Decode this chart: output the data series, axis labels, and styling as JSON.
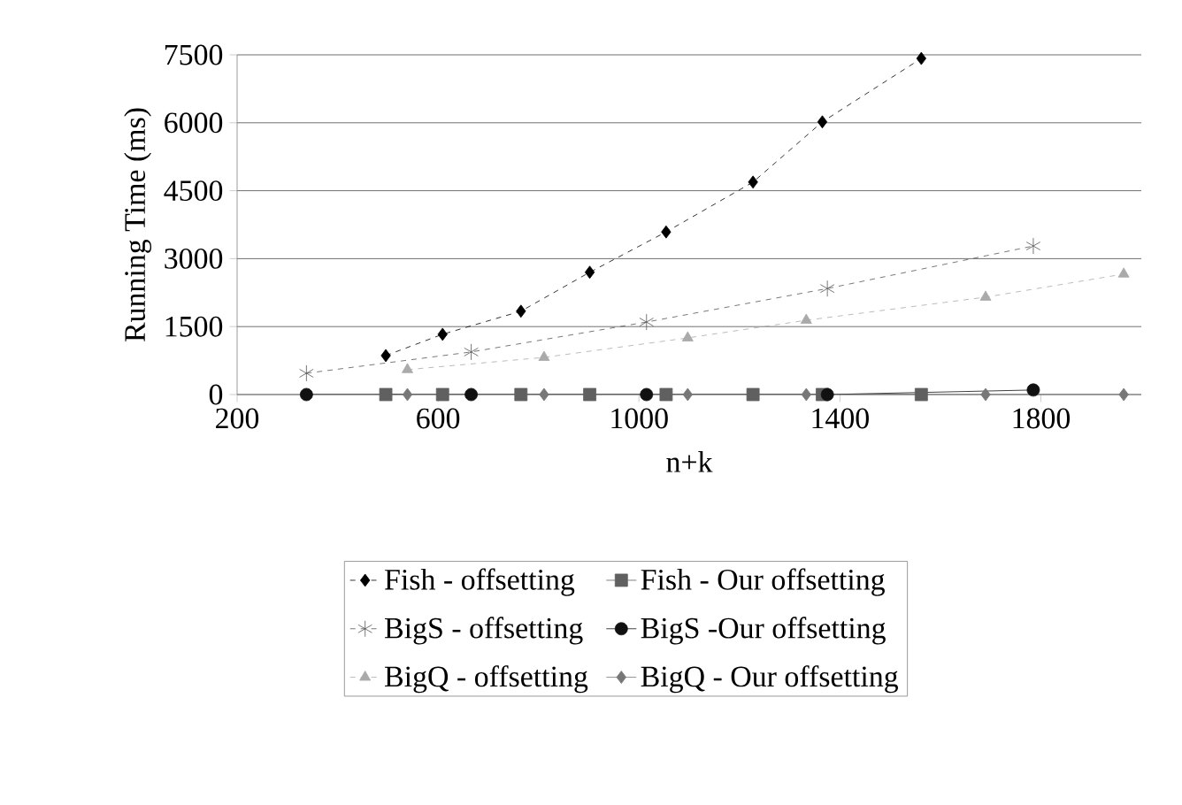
{
  "chart_data": {
    "type": "line",
    "xlabel": "n+k",
    "ylabel": "Running Time (ms)",
    "xlim": [
      200,
      2000
    ],
    "xticks": [
      200,
      600,
      1000,
      1400,
      1800
    ],
    "ylim": [
      0,
      7500
    ],
    "yticks": [
      0,
      1500,
      3000,
      4500,
      6000,
      7500
    ],
    "grid": "y",
    "legend": "bottom",
    "series": [
      {
        "name": "Fish - offsetting",
        "color": "#000000",
        "marker": "diamond",
        "line_style": "dashed",
        "x": [
          496,
          609,
          765,
          902,
          1054,
          1227,
          1365,
          1562
        ],
        "values": [
          860,
          1330,
          1840,
          2700,
          3590,
          4690,
          6020,
          7420
        ]
      },
      {
        "name": "Fish - Our offsetting",
        "color": "#606060",
        "marker": "square",
        "line_style": "solid",
        "x": [
          496,
          609,
          765,
          902,
          1054,
          1227,
          1365,
          1562
        ],
        "values": [
          0,
          0,
          0,
          0,
          0,
          0,
          0,
          0
        ]
      },
      {
        "name": "BigS - offsetting",
        "color": "#555555",
        "marker": "cross",
        "line_style": "dashed",
        "x": [
          338,
          666,
          1015,
          1375,
          1785
        ],
        "values": [
          470,
          940,
          1600,
          2340,
          3280
        ]
      },
      {
        "name": "BigS -Our offsetting",
        "color": "#111111",
        "marker": "circle",
        "line_style": "solid",
        "x": [
          338,
          666,
          1015,
          1375,
          1785
        ],
        "values": [
          0,
          0,
          0,
          0,
          100
        ]
      },
      {
        "name": "BigQ -  offsetting",
        "color": "#aaaaaa",
        "marker": "triangle",
        "line_style": "dashed",
        "x": [
          539,
          811,
          1097,
          1333,
          1690,
          1965
        ],
        "values": [
          550,
          820,
          1250,
          1640,
          2150,
          2660
        ]
      },
      {
        "name": "BigQ - Our offsetting",
        "color": "#777777",
        "marker": "diamond",
        "line_style": "solid",
        "x": [
          539,
          811,
          1097,
          1333,
          1690,
          1965
        ],
        "values": [
          0,
          0,
          0,
          0,
          0,
          0
        ]
      }
    ]
  }
}
